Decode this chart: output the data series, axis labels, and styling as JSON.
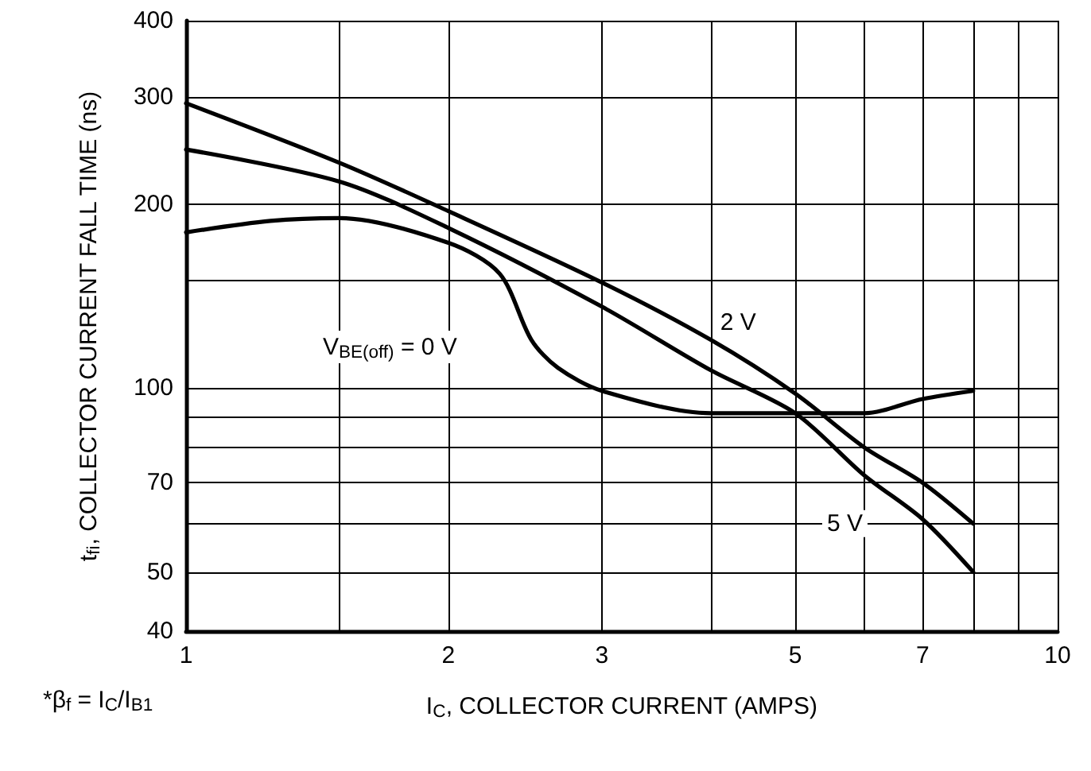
{
  "chart_data": {
    "type": "line",
    "xlabel": "I$_{C}$, COLLECTOR CURRENT (AMPS)",
    "ylabel": "t$_{fi}$, COLLECTOR CURRENT FALL TIME (ns)",
    "log": "xy",
    "grid": true,
    "marker": "none",
    "line_style": "solid",
    "xlim": [
      1,
      10
    ],
    "xticks": [
      1,
      {
        "value": 1.5,
        "label": null
      },
      2,
      3,
      {
        "value": 4,
        "label": null
      },
      5,
      {
        "value": 6,
        "label": null
      },
      7,
      {
        "value": 8,
        "label": null
      },
      {
        "value": 9,
        "label": null
      },
      10
    ],
    "ylim": [
      40,
      400
    ],
    "yticks": [
      40,
      50,
      {
        "value": 60,
        "label": null
      },
      70,
      {
        "value": 80,
        "label": null
      },
      {
        "value": 90,
        "label": null
      },
      100,
      {
        "value": 150,
        "label": null
      },
      200,
      300,
      400
    ],
    "series": [
      {
        "color": "#000000",
        "x": [
          1,
          1.5,
          2,
          3,
          4,
          5,
          6,
          7,
          8
        ],
        "values": [
          293,
          234,
          195,
          149,
          120,
          98,
          80,
          70,
          60
        ]
      },
      {
        "color": "#000000",
        "x": [
          1,
          1.5,
          2,
          3,
          4,
          5,
          6,
          7,
          8
        ],
        "values": [
          246,
          218,
          183,
          136,
          107,
          91,
          72,
          61,
          50
        ]
      },
      {
        "color": "#000000",
        "x": [
          1,
          1.25,
          1.5,
          2,
          2.29,
          2.49,
          2.67,
          3,
          4,
          5,
          6,
          7,
          8
        ],
        "values": [
          180,
          188,
          190,
          173,
          154,
          120,
          108,
          99,
          91,
          91,
          91,
          96,
          99
        ]
      }
    ],
    "annotations": [
      "V$_{BE(off)}$ = 0 V",
      {
        "text": "2 V",
        "x": 4.3,
        "y": 128
      },
      {
        "text": "5 V",
        "x": 5.7,
        "y": 60
      },
      "*β$_{f}$ = I$_{C}$/I$_{B1}$"
    ]
  }
}
